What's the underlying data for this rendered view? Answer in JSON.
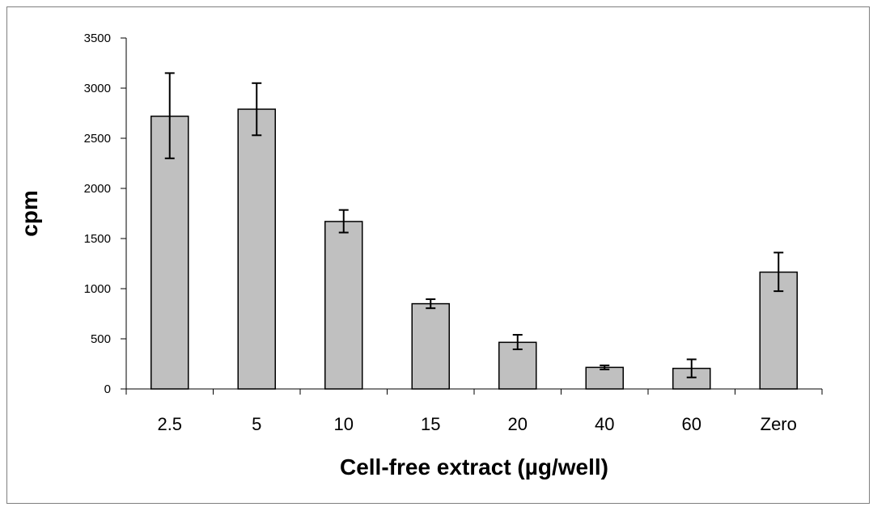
{
  "chart_data": {
    "type": "bar",
    "title": "",
    "xlabel": "Cell-free extract (µg/well)",
    "ylabel": "cpm",
    "categories": [
      "2.5",
      "5",
      "10",
      "15",
      "20",
      "40",
      "60",
      "Zero"
    ],
    "series": [
      {
        "values": [
          2720,
          2790,
          1670,
          850,
          465,
          215,
          205,
          1165
        ],
        "error_low": [
          2300,
          2530,
          1560,
          805,
          395,
          195,
          115,
          975
        ],
        "error_high": [
          3150,
          3050,
          1785,
          895,
          540,
          235,
          295,
          1360
        ]
      }
    ],
    "yticks": [
      0,
      500,
      1000,
      1500,
      2000,
      2500,
      3000,
      3500
    ],
    "ylim": [
      0,
      3500
    ],
    "grid": false,
    "legend": "none",
    "bar_color": "#c0c0c0",
    "bar_stroke": "#000000"
  }
}
